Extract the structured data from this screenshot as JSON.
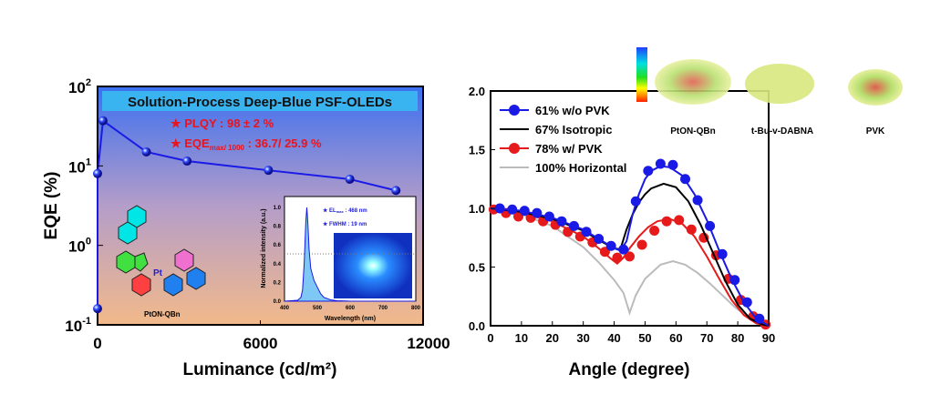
{
  "chart_data": [
    {
      "type": "line",
      "title": "Solution-Process Deep-Blue PSF-OLEDs",
      "xlabel": "Luminance (cd/m²)",
      "ylabel": "EQE (%)",
      "xlim": [
        0,
        12000
      ],
      "ylim": [
        0.1,
        100
      ],
      "yscale": "log",
      "xticks": [
        "0",
        "6000",
        "12000"
      ],
      "yticks": [
        "10^2",
        "10^1",
        "10^0",
        "10^-1"
      ],
      "color": "#1a1ae6",
      "series": [
        {
          "x": [
            0,
            0,
            200,
            1800,
            3300,
            6300,
            9300,
            11000
          ],
          "y": [
            0.16,
            8,
            37,
            15,
            11.5,
            8.8,
            6.8,
            4.9
          ]
        }
      ],
      "annotations": [
        "★ PLQY : 98 ± 2 %",
        "★ EQE",
        "max/ 1000",
        " : 36.7/ 25.9 %"
      ],
      "molecule_label": "PtON-QBn",
      "inset": {
        "type": "area",
        "xlabel": "Wavelength (nm)",
        "ylabel": "Normalized intensity (a.u.)",
        "xlim": [
          400,
          800
        ],
        "ylim": [
          0,
          1.0
        ],
        "xticks": [
          "400",
          "500",
          "600",
          "700",
          "800"
        ],
        "yticks": [
          "0.0",
          "0.2",
          "0.4",
          "0.6",
          "0.8",
          "1.0"
        ],
        "el_label": "★ EL",
        "el_sub": "max",
        "el_value": " : 468 nm",
        "fwhm": "★ FWHM : 19 nm",
        "x": [
          400,
          440,
          450,
          455,
          460,
          465,
          468,
          471,
          475,
          480,
          490,
          500,
          510,
          520,
          540,
          560,
          600,
          700,
          800
        ],
        "y": [
          0,
          0.01,
          0.04,
          0.12,
          0.4,
          0.85,
          1.0,
          0.85,
          0.55,
          0.35,
          0.22,
          0.15,
          0.08,
          0.04,
          0.015,
          0.005,
          0,
          0,
          0
        ]
      }
    },
    {
      "type": "line",
      "xlabel": "Angle (degree)",
      "ylabel": "",
      "xlim": [
        0,
        90
      ],
      "ylim": [
        0,
        2.0
      ],
      "xticks": [
        "0",
        "10",
        "20",
        "30",
        "40",
        "50",
        "60",
        "70",
        "80",
        "90"
      ],
      "yticks": [
        "0.0",
        "0.5",
        "1.0",
        "1.5",
        "2.0"
      ],
      "legend_position": "top-left",
      "series": [
        {
          "name": "61% w/o PVK",
          "color": "#1a1ae6",
          "marker": "circle",
          "points_x": [
            3,
            7,
            11,
            15,
            19,
            23,
            27,
            31,
            35,
            39,
            43,
            47,
            51,
            55,
            59,
            63,
            67,
            71,
            75,
            79,
            83,
            87
          ],
          "points_y": [
            1.0,
            0.99,
            0.98,
            0.96,
            0.93,
            0.89,
            0.85,
            0.8,
            0.74,
            0.68,
            0.65,
            1.06,
            1.32,
            1.38,
            1.37,
            1.25,
            1.07,
            0.85,
            0.61,
            0.39,
            0.2,
            0.06
          ],
          "fit_x": [
            0,
            10,
            20,
            30,
            35,
            40,
            42,
            44,
            46,
            48,
            50,
            52,
            55,
            58,
            62,
            66,
            70,
            74,
            78,
            82,
            86,
            90
          ],
          "fit_y": [
            1.0,
            0.98,
            0.92,
            0.82,
            0.74,
            0.66,
            0.64,
            0.72,
            0.95,
            1.12,
            1.25,
            1.32,
            1.36,
            1.35,
            1.28,
            1.12,
            0.9,
            0.64,
            0.4,
            0.2,
            0.06,
            0
          ]
        },
        {
          "name": "67% Isotropic",
          "color": "#000000",
          "fit_x": [
            0,
            10,
            20,
            30,
            35,
            40,
            42,
            44,
            46,
            48,
            50,
            52,
            56,
            60,
            64,
            68,
            72,
            76,
            80,
            84,
            88,
            90
          ],
          "fit_y": [
            1.0,
            0.97,
            0.91,
            0.81,
            0.73,
            0.66,
            0.65,
            0.82,
            0.95,
            1.05,
            1.12,
            1.17,
            1.21,
            1.18,
            1.06,
            0.86,
            0.62,
            0.38,
            0.18,
            0.06,
            0.01,
            0
          ]
        },
        {
          "name": "78% w/ PVK",
          "color": "#e61a1a",
          "marker": "circle",
          "points_x": [
            1,
            5,
            9,
            13,
            17,
            21,
            25,
            29,
            33,
            37,
            41,
            45,
            49,
            53,
            57,
            61,
            65,
            69,
            73,
            77,
            81,
            85,
            89
          ],
          "points_y": [
            0.99,
            0.96,
            0.93,
            0.92,
            0.89,
            0.86,
            0.8,
            0.76,
            0.71,
            0.63,
            0.58,
            0.59,
            0.69,
            0.81,
            0.89,
            0.9,
            0.82,
            0.75,
            0.6,
            0.4,
            0.22,
            0.08,
            0.01
          ],
          "fit_x": [
            0,
            10,
            20,
            30,
            35,
            39,
            41,
            43,
            45,
            48,
            51,
            54,
            58,
            62,
            66,
            70,
            74,
            78,
            82,
            86,
            90
          ],
          "fit_y": [
            1.0,
            0.96,
            0.89,
            0.76,
            0.66,
            0.57,
            0.53,
            0.58,
            0.66,
            0.76,
            0.84,
            0.89,
            0.91,
            0.87,
            0.76,
            0.59,
            0.4,
            0.22,
            0.09,
            0.02,
            0
          ]
        },
        {
          "name": "100% Horizontal",
          "color": "#bbbbbb",
          "fit_x": [
            0,
            10,
            20,
            30,
            35,
            40,
            43,
            45,
            47,
            50,
            55,
            59,
            63,
            67,
            71,
            75,
            79,
            83,
            87,
            90
          ],
          "fit_y": [
            1.0,
            0.95,
            0.85,
            0.67,
            0.54,
            0.39,
            0.28,
            0.11,
            0.26,
            0.4,
            0.52,
            0.55,
            0.52,
            0.45,
            0.36,
            0.26,
            0.16,
            0.08,
            0.02,
            0
          ]
        }
      ],
      "molecule_labels": [
        "PtON-QBn",
        "t-Bu-v-DABNA",
        "PVK"
      ]
    }
  ]
}
